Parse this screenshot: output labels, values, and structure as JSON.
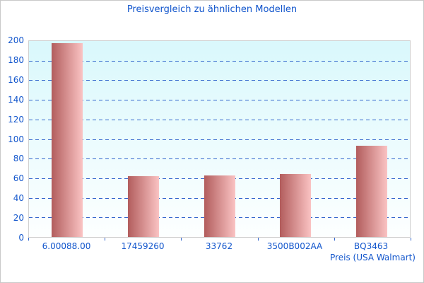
{
  "chart_data": {
    "type": "bar",
    "title": "Preisvergleich zu ähnlichen Modellen",
    "categories": [
      "6.00088.00",
      "17459260",
      "33762",
      "3500B002AA",
      "BQ3463"
    ],
    "values": [
      198,
      62,
      63,
      64,
      93
    ],
    "xlabel": "Preis (USA Walmart)",
    "ylabel": "",
    "ylim": [
      0,
      200
    ],
    "yticks": [
      0,
      20,
      40,
      60,
      80,
      100,
      120,
      140,
      160,
      180,
      200
    ],
    "grid": "horizontal-dashed",
    "legend": "none",
    "colors": {
      "title_text": "#1155cc",
      "axis_text": "#1155cc",
      "gridline": "#3366cc",
      "bar_gradient_left": "#b25d5d",
      "bar_gradient_right": "#fac3c3",
      "plot_bg_top": "#d9f8fc",
      "plot_bg_bottom": "#fdffff",
      "plot_border": "#d0d0d0",
      "figure_border": "#c9c9c9"
    }
  }
}
